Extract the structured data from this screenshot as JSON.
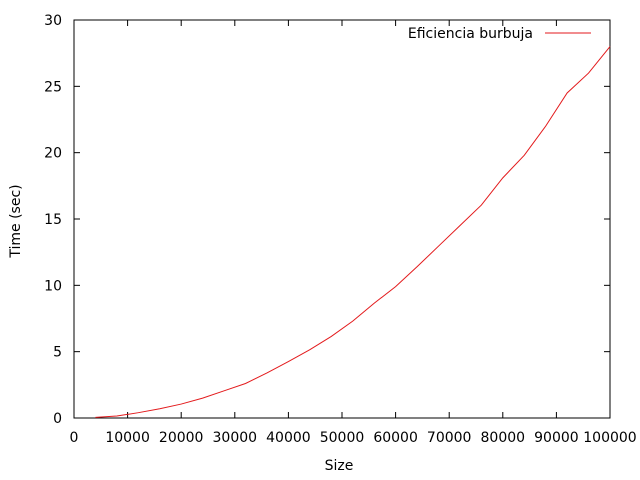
{
  "chart_data": {
    "type": "line",
    "title": "",
    "xlabel": "Size",
    "ylabel": "Time (sec)",
    "xlim": [
      0,
      100000
    ],
    "ylim": [
      0,
      30
    ],
    "x_ticks": [
      0,
      10000,
      20000,
      30000,
      40000,
      50000,
      60000,
      70000,
      80000,
      90000,
      100000
    ],
    "y_ticks": [
      0,
      5,
      10,
      15,
      20,
      25,
      30
    ],
    "x_tick_labels": [
      "0",
      "10000",
      "20000",
      "30000",
      "40000",
      "50000",
      "60000",
      "70000",
      "80000",
      "90000",
      "100000"
    ],
    "y_tick_labels": [
      "0",
      "5",
      "10",
      "15",
      "20",
      "25",
      "30"
    ],
    "grid": false,
    "legend_position": "top-right",
    "series": [
      {
        "name": "Eficiencia burbuja",
        "color": "#e31a1c",
        "x": [
          4000,
          8000,
          12000,
          16000,
          20000,
          24000,
          28000,
          32000,
          36000,
          40000,
          44000,
          48000,
          52000,
          56000,
          60000,
          64000,
          68000,
          72000,
          76000,
          80000,
          84000,
          88000,
          92000,
          96000,
          100000
        ],
        "y": [
          0.05,
          0.15,
          0.4,
          0.7,
          1.05,
          1.5,
          2.05,
          2.6,
          3.4,
          4.25,
          5.15,
          6.15,
          7.3,
          8.65,
          9.9,
          11.4,
          12.95,
          14.5,
          16.05,
          18.1,
          19.8,
          22.0,
          24.5,
          26.0,
          28.0
        ]
      }
    ]
  }
}
